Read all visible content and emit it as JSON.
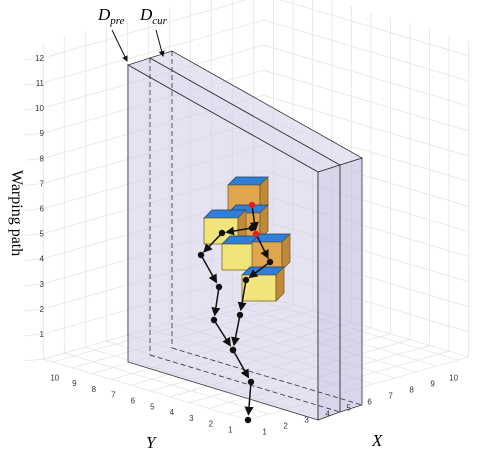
{
  "planes": [
    {
      "symbol": "D",
      "subscript": "pre"
    },
    {
      "symbol": "D",
      "subscript": "cur"
    }
  ],
  "axes": {
    "vertical": {
      "label": "Warping path",
      "ticks": [
        1,
        2,
        3,
        4,
        5,
        6,
        7,
        8,
        9,
        10,
        11,
        12
      ]
    },
    "y": {
      "label": "Y",
      "ticks": [
        1,
        2,
        3,
        4,
        5,
        6,
        7,
        8,
        9,
        10
      ]
    },
    "x": {
      "label": "X",
      "ticks": [
        1,
        2,
        3,
        4,
        5,
        6,
        7,
        8,
        9,
        10
      ]
    }
  }
}
